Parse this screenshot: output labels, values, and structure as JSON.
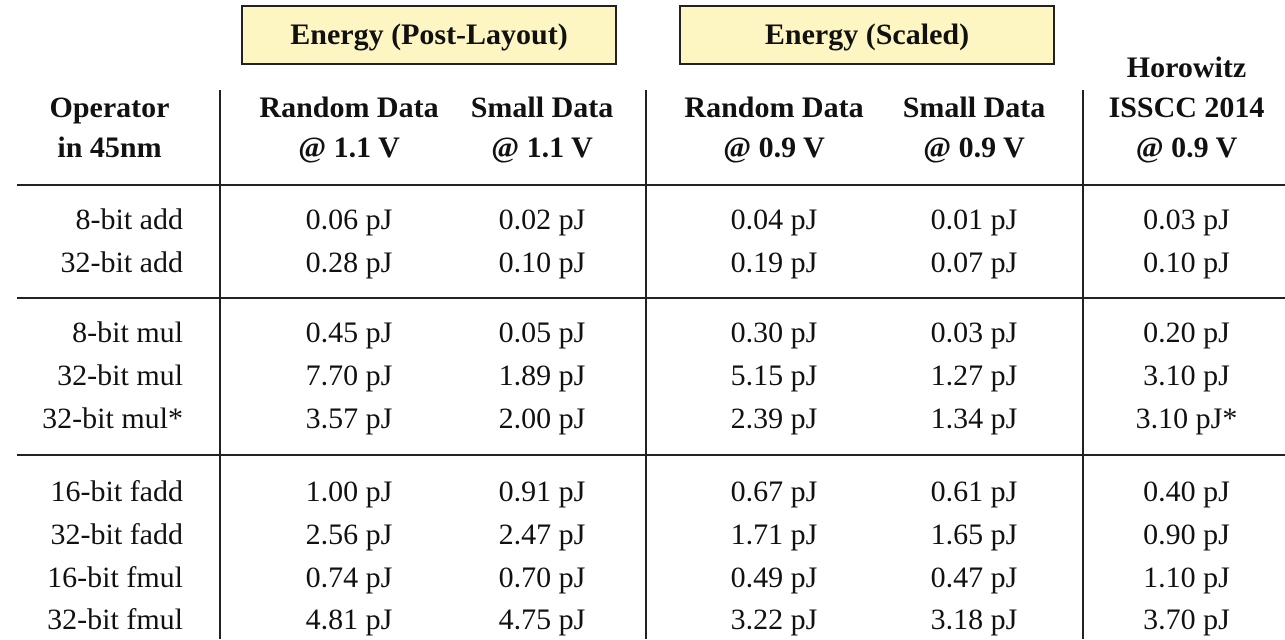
{
  "groups": [
    {
      "label": "Energy (Post-Layout)"
    },
    {
      "label": "Energy (Scaled)"
    }
  ],
  "columns": [
    {
      "line1": "Operator",
      "line2": "in 45nm"
    },
    {
      "line1": "Random Data",
      "line2": "@ 1.1 V"
    },
    {
      "line1": "Small Data",
      "line2": "@ 1.1 V"
    },
    {
      "line1": "Random Data",
      "line2": "@ 0.9 V"
    },
    {
      "line1": "Small Data",
      "line2": "@ 0.9 V"
    },
    {
      "line1": "Horowitz",
      "line2": "ISSCC 2014",
      "line3": "@ 0.9 V"
    }
  ],
  "rows": [
    [
      "8-bit add",
      "0.06 pJ",
      "0.02 pJ",
      "0.04 pJ",
      "0.01 pJ",
      "0.03 pJ"
    ],
    [
      "32-bit add",
      "0.28 pJ",
      "0.10 pJ",
      "0.19 pJ",
      "0.07 pJ",
      "0.10 pJ"
    ],
    [
      "8-bit mul",
      "0.45 pJ",
      "0.05 pJ",
      "0.30 pJ",
      "0.03 pJ",
      "0.20 pJ"
    ],
    [
      "32-bit mul",
      "7.70 pJ",
      "1.89 pJ",
      "5.15 pJ",
      "1.27 pJ",
      "3.10 pJ"
    ],
    [
      "32-bit mul*",
      "3.57 pJ",
      "2.00 pJ",
      "2.39 pJ",
      "1.34 pJ",
      "3.10 pJ*"
    ],
    [
      "16-bit fadd",
      "1.00 pJ",
      "0.91 pJ",
      "0.67 pJ",
      "0.61 pJ",
      "0.40 pJ"
    ],
    [
      "32-bit fadd",
      "2.56 pJ",
      "2.47 pJ",
      "1.71 pJ",
      "1.65 pJ",
      "0.90 pJ"
    ],
    [
      "16-bit fmul",
      "0.74 pJ",
      "0.70 pJ",
      "0.49 pJ",
      "0.47 pJ",
      "1.10 pJ"
    ],
    [
      "32-bit fmul",
      "4.81 pJ",
      "4.75 pJ",
      "3.22 pJ",
      "3.18 pJ",
      "3.70 pJ"
    ]
  ],
  "colors": {
    "group_fill": "#fdf6c3",
    "rule": "#222222"
  }
}
